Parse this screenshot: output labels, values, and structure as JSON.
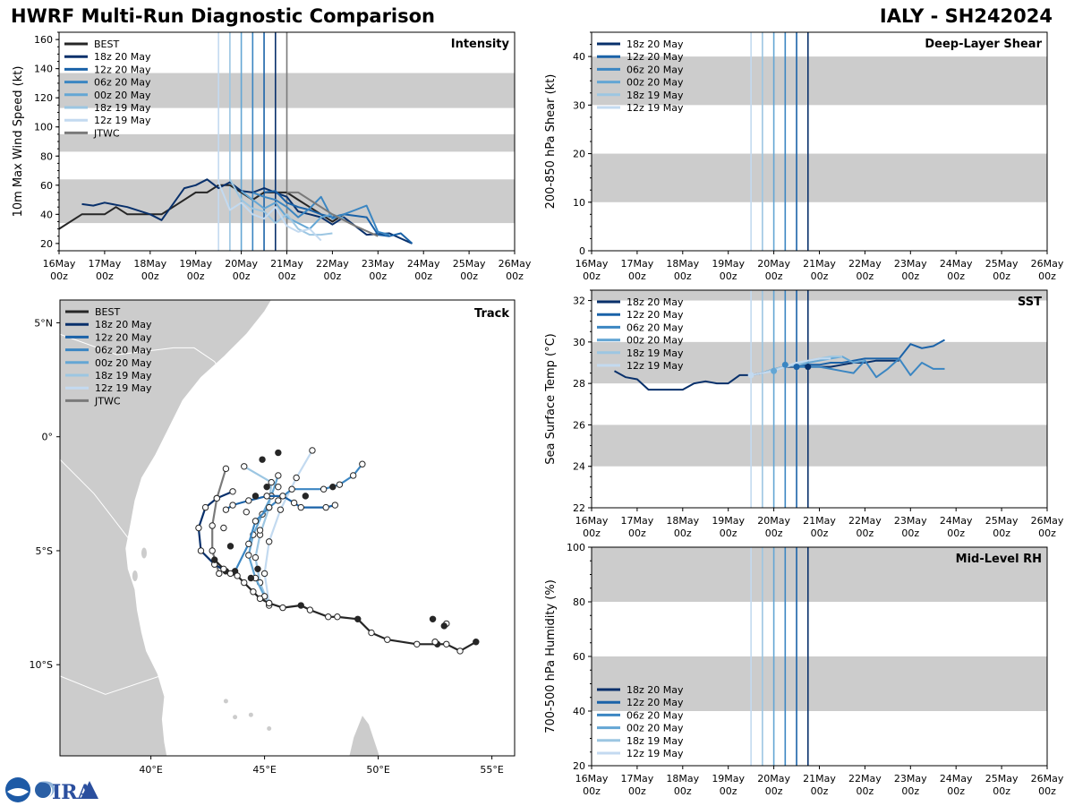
{
  "header": {
    "title": "HWRF Multi-Run Diagnostic Comparison",
    "storm_id": "IALY - SH242024"
  },
  "time_axis": {
    "tick_days": [
      "16May",
      "17May",
      "18May",
      "19May",
      "20May",
      "21May",
      "22May",
      "23May",
      "24May",
      "25May",
      "26May"
    ],
    "tick_hour": "00z",
    "range_hours": [
      0,
      240
    ]
  },
  "colors": {
    "best": "#262626",
    "r18z20": "#08306b",
    "r12z20": "#1a62a8",
    "r06z20": "#3b86c2",
    "r00z20": "#64a6d4",
    "r18z19": "#9cc6e2",
    "r12z19": "#c3daf0",
    "jtwc": "#7a7a7a",
    "shade": "#cccccc"
  },
  "run_init_hours": {
    "r12z19": 84,
    "r18z19": 90,
    "r00z20": 96,
    "r06z20": 102,
    "r12z20": 108,
    "r18z20": 114,
    "jtwc": 120
  },
  "chart_data": [
    {
      "id": "intensity",
      "type": "line",
      "title": "Intensity",
      "ylabel": "10m Max Wind Speed (kt)",
      "ylim": [
        15,
        165
      ],
      "yticks": [
        20,
        40,
        60,
        80,
        100,
        120,
        140,
        160
      ],
      "shade_bands": [
        [
          34,
          64
        ],
        [
          83,
          95
        ],
        [
          113,
          137
        ]
      ],
      "legend": [
        "BEST",
        "18z 20 May",
        "12z 20 May",
        "06z 20 May",
        "00z 20 May",
        "18z 19 May",
        "12z 19 May",
        "JTWC"
      ],
      "series": [
        {
          "name": "BEST",
          "color_key": "best",
          "x": [
            0,
            12,
            24,
            30,
            36,
            48,
            54,
            60,
            72,
            78,
            84,
            90,
            96,
            102,
            108,
            114,
            120,
            126,
            132,
            138,
            144,
            150
          ],
          "y": [
            30,
            40,
            40,
            45,
            40,
            40,
            40,
            45,
            55,
            55,
            60,
            60,
            55,
            50,
            55,
            55,
            55,
            50,
            45,
            40,
            35,
            40
          ]
        },
        {
          "name": "18z 20 May",
          "color_key": "r18z20",
          "x": [
            12,
            18,
            24,
            36,
            48,
            54,
            66,
            72,
            78,
            84,
            90,
            96,
            102,
            108,
            114,
            120,
            126,
            132,
            138,
            144,
            150,
            162,
            174,
            186
          ],
          "y": [
            47,
            46,
            48,
            45,
            40,
            36,
            58,
            60,
            64,
            58,
            62,
            56,
            55,
            58,
            55,
            52,
            42,
            40,
            38,
            33,
            38,
            26,
            27,
            20
          ]
        },
        {
          "name": "12z 20 May",
          "color_key": "r12z20",
          "x": [
            108,
            114,
            120,
            126,
            132,
            138,
            144,
            150,
            162,
            168,
            174,
            180,
            186
          ],
          "y": [
            55,
            56,
            48,
            45,
            43,
            40,
            38,
            40,
            38,
            26,
            25,
            27,
            20
          ]
        },
        {
          "name": "06z 20 May",
          "color_key": "r06z20",
          "x": [
            102,
            108,
            114,
            120,
            126,
            132,
            138,
            144,
            150,
            156,
            162,
            168,
            174
          ],
          "y": [
            55,
            52,
            50,
            45,
            38,
            44,
            52,
            37,
            40,
            43,
            46,
            28,
            26
          ]
        },
        {
          "name": "00z 20 May",
          "color_key": "r00z20",
          "x": [
            96,
            102,
            108,
            114,
            120,
            126,
            132,
            138,
            144,
            150
          ],
          "y": [
            56,
            50,
            44,
            48,
            38,
            34,
            30,
            38,
            40,
            37
          ]
        },
        {
          "name": "18z 19 May",
          "color_key": "r18z19",
          "x": [
            90,
            96,
            102,
            108,
            114,
            120,
            126,
            132,
            138,
            144
          ],
          "y": [
            64,
            50,
            44,
            42,
            34,
            40,
            30,
            26,
            26,
            27
          ]
        },
        {
          "name": "12z 19 May",
          "color_key": "r12z19",
          "x": [
            84,
            90,
            96,
            102,
            108,
            114,
            120,
            126,
            132,
            138
          ],
          "y": [
            62,
            43,
            48,
            40,
            37,
            45,
            32,
            28,
            30,
            22
          ]
        },
        {
          "name": "JTWC",
          "color_key": "jtwc",
          "x": [
            120,
            126,
            132,
            144,
            156,
            168
          ],
          "y": [
            55,
            55,
            50,
            40,
            32,
            25
          ]
        }
      ]
    },
    {
      "id": "shear",
      "type": "line",
      "title": "Deep-Layer Shear",
      "ylabel": "200-850 hPa Shear (kt)",
      "ylim": [
        0,
        45
      ],
      "yticks": [
        0,
        10,
        20,
        30,
        40
      ],
      "shade_bands": [
        [
          10,
          20
        ],
        [
          30,
          40
        ]
      ],
      "legend": [
        "18z 20 May",
        "12z 20 May",
        "06z 20 May",
        "00z 20 May",
        "18z 19 May",
        "12z 19 May"
      ],
      "series": []
    },
    {
      "id": "sst",
      "type": "line",
      "title": "SST",
      "ylabel": "Sea Surface Temp (°C)",
      "ylim": [
        22,
        32.5
      ],
      "yticks": [
        22,
        24,
        26,
        28,
        30,
        32
      ],
      "shade_bands": [
        [
          24,
          26
        ],
        [
          28,
          30
        ],
        [
          32,
          34
        ]
      ],
      "legend": [
        "18z 20 May",
        "12z 20 May",
        "06z 20 May",
        "00z 20 May",
        "18z 19 May",
        "12z 19 May"
      ],
      "series": [
        {
          "name": "18z 20 May",
          "color_key": "r18z20",
          "x": [
            12,
            18,
            24,
            30,
            36,
            42,
            48,
            54,
            60,
            66,
            72,
            78,
            84,
            90,
            96,
            102,
            108,
            114,
            120,
            126,
            132,
            138,
            144,
            150,
            156,
            162
          ],
          "y": [
            28.6,
            28.3,
            28.2,
            27.7,
            27.7,
            27.7,
            27.7,
            28.0,
            28.1,
            28.0,
            28.0,
            28.4,
            28.4,
            28.5,
            28.7,
            28.8,
            28.8,
            28.8,
            28.8,
            28.8,
            28.9,
            29.0,
            29.0,
            29.1,
            29.1,
            29.1
          ]
        },
        {
          "name": "12z 20 May",
          "color_key": "r12z20",
          "x": [
            108,
            114,
            120,
            126,
            132,
            138,
            144,
            150,
            156,
            162,
            168,
            174,
            180,
            186
          ],
          "y": [
            28.8,
            28.9,
            28.9,
            29.0,
            29.0,
            29.1,
            29.2,
            29.2,
            29.2,
            29.2,
            29.9,
            29.7,
            29.8,
            30.1
          ]
        },
        {
          "name": "06z 20 May",
          "color_key": "r06z20",
          "x": [
            102,
            108,
            114,
            120,
            126,
            132,
            138,
            144,
            150,
            156,
            162,
            168,
            174,
            180,
            186
          ],
          "y": [
            28.9,
            28.8,
            28.8,
            28.8,
            28.7,
            28.6,
            28.5,
            29.1,
            28.3,
            28.7,
            29.2,
            28.4,
            29.0,
            28.7,
            28.7
          ]
        },
        {
          "name": "00z 20 May",
          "color_key": "r00z20",
          "x": [
            96,
            102,
            108,
            114,
            120,
            126,
            132,
            138,
            144
          ],
          "y": [
            28.6,
            28.8,
            28.9,
            29.0,
            29.1,
            29.2,
            29.3,
            29.0,
            29.1
          ]
        },
        {
          "name": "18z 19 May",
          "color_key": "r18z19",
          "x": [
            90,
            96,
            102,
            108,
            114,
            120,
            126,
            132
          ],
          "y": [
            28.5,
            28.7,
            28.8,
            28.9,
            29.1,
            29.2,
            29.3,
            29.3
          ]
        },
        {
          "name": "12z 19 May",
          "color_key": "r12z19",
          "x": [
            84,
            90,
            96,
            102,
            108,
            114,
            120,
            126
          ],
          "y": [
            28.4,
            28.5,
            28.6,
            28.8,
            29.0,
            29.1,
            29.2,
            29.2
          ]
        }
      ],
      "markers": [
        {
          "color_key": "r12z19",
          "x": 84,
          "y": 28.4
        },
        {
          "color_key": "r00z20",
          "x": 96,
          "y": 28.6
        },
        {
          "color_key": "r06z20",
          "x": 102,
          "y": 28.9
        },
        {
          "color_key": "r12z20",
          "x": 108,
          "y": 28.8
        },
        {
          "color_key": "r18z20",
          "x": 114,
          "y": 28.8
        }
      ]
    },
    {
      "id": "rh",
      "type": "line",
      "title": "Mid-Level RH",
      "ylabel": "700-500 hPa Humidity (%)",
      "ylim": [
        20,
        100
      ],
      "yticks": [
        20,
        40,
        60,
        80,
        100
      ],
      "shade_bands": [
        [
          40,
          60
        ],
        [
          80,
          100
        ]
      ],
      "legend": [
        "18z 20 May",
        "12z 20 May",
        "06z 20 May",
        "00z 20 May",
        "18z 19 May",
        "12z 19 May"
      ],
      "series": []
    },
    {
      "id": "track",
      "type": "scatter",
      "title": "Track",
      "xlim": [
        36,
        56
      ],
      "ylim": [
        -14,
        6
      ],
      "xtick_values": [
        40,
        45,
        50,
        55
      ],
      "xtick_labels": [
        "40°E",
        "45°E",
        "50°E",
        "55°E"
      ],
      "ytick_values": [
        5,
        0,
        -5,
        -10
      ],
      "ytick_labels": [
        "5°N",
        "0°",
        "5°S",
        "10°S"
      ],
      "legend": [
        "BEST",
        "18z 20 May",
        "12z 20 May",
        "06z 20 May",
        "00z 20 May",
        "18z 19 May",
        "12z 19 May",
        "JTWC"
      ],
      "series": [
        {
          "name": "BEST",
          "color_key": "best",
          "lon": [
            54.3,
            53.6,
            53.0,
            52.6,
            51.7,
            50.4,
            49.7,
            49.1,
            48.2,
            47.8,
            47.0,
            46.6,
            45.8,
            45.2,
            44.8,
            44.5,
            44.1,
            43.8,
            43.5,
            43.2,
            42.8
          ],
          "lat": [
            -9.0,
            -9.4,
            -9.1,
            -9.1,
            -9.1,
            -8.9,
            -8.6,
            -8.0,
            -7.9,
            -7.9,
            -7.6,
            -7.4,
            -7.5,
            -7.3,
            -7.1,
            -6.8,
            -6.4,
            -6.1,
            -6.0,
            -5.8,
            -5.4
          ],
          "filled": [
            true,
            false,
            false,
            true,
            false,
            false,
            false,
            true,
            false,
            false,
            false,
            true,
            false,
            false,
            false,
            false,
            false,
            false,
            false,
            false,
            true
          ]
        },
        {
          "name": "18z 20 May",
          "color_key": "r18z20",
          "lon": [
            43.6,
            42.9,
            42.4,
            42.1,
            42.2,
            42.8,
            43.3
          ],
          "lat": [
            -2.4,
            -2.7,
            -3.1,
            -4.0,
            -5.0,
            -5.6,
            -5.9
          ],
          "filled": [
            false,
            false,
            false,
            false,
            false,
            false,
            true
          ]
        },
        {
          "name": "12z 20 May",
          "color_key": "r12z20",
          "lon": [
            43.3,
            43.6,
            44.3,
            45.1,
            45.8,
            46.3,
            46.6,
            47.7,
            48.1
          ],
          "lat": [
            -3.2,
            -3.0,
            -2.8,
            -2.6,
            -2.6,
            -2.9,
            -3.1,
            -3.1,
            -3.0
          ],
          "filled": [
            false,
            false,
            false,
            false,
            false,
            false,
            false,
            false,
            false
          ]
        },
        {
          "name": "06z 20 May",
          "color_key": "r06z20",
          "lon": [
            43.7,
            44.3,
            44.6,
            45.2,
            46.2,
            47.6,
            48.3,
            48.9,
            49.3
          ],
          "lat": [
            -5.9,
            -4.7,
            -3.7,
            -3.1,
            -2.3,
            -2.3,
            -2.1,
            -1.7,
            -1.2
          ],
          "filled": [
            true,
            false,
            false,
            false,
            false,
            false,
            false,
            false,
            false
          ]
        },
        {
          "name": "00z 20 May",
          "color_key": "r00z20",
          "lon": [
            45.0,
            44.6,
            44.3,
            44.5,
            44.9,
            45.3,
            45.6
          ],
          "lat": [
            -7.0,
            -6.2,
            -5.2,
            -4.3,
            -3.4,
            -2.6,
            -1.7
          ],
          "filled": [
            false,
            false,
            false,
            false,
            false,
            false,
            false
          ]
        },
        {
          "name": "18z 19 May",
          "color_key": "r18z19",
          "lon": [
            45.2,
            44.8,
            44.6,
            44.8,
            45.2,
            45.3,
            44.1
          ],
          "lat": [
            -7.4,
            -6.4,
            -5.3,
            -4.3,
            -3.1,
            -2.0,
            -1.3
          ],
          "filled": [
            false,
            false,
            false,
            false,
            false,
            false,
            false
          ]
        },
        {
          "name": "12z 19 May",
          "color_key": "r12z19",
          "lon": [
            45.2,
            45.0,
            45.2,
            45.7,
            46.4,
            47.1
          ],
          "lat": [
            -7.3,
            -6.0,
            -4.6,
            -3.2,
            -1.8,
            -0.6
          ],
          "filled": [
            false,
            false,
            false,
            false,
            false,
            false
          ]
        },
        {
          "name": "JTWC",
          "color_key": "jtwc",
          "lon": [
            43.0,
            42.7,
            42.7,
            42.9,
            43.3
          ],
          "lat": [
            -6.0,
            -5.0,
            -3.9,
            -2.7,
            -1.4
          ],
          "filled": [
            false,
            false,
            false,
            true,
            false
          ]
        }
      ],
      "extra_markers": [
        {
          "lon": 45.6,
          "lat": -0.7,
          "filled": true
        },
        {
          "lon": 44.9,
          "lat": -1.0,
          "filled": true
        },
        {
          "lon": 46.8,
          "lat": -2.6,
          "filled": true
        },
        {
          "lon": 48.0,
          "lat": -2.2,
          "filled": true
        },
        {
          "lon": 45.1,
          "lat": -2.2,
          "filled": true
        },
        {
          "lon": 44.6,
          "lat": -2.6,
          "filled": true
        },
        {
          "lon": 43.5,
          "lat": -4.8,
          "filled": true
        },
        {
          "lon": 44.7,
          "lat": -5.8,
          "filled": true
        },
        {
          "lon": 44.4,
          "lat": -6.2,
          "filled": true
        },
        {
          "lon": 43.2,
          "lat": -4.0,
          "filled": false
        },
        {
          "lon": 44.8,
          "lat": -4.1,
          "filled": false
        },
        {
          "lon": 44.2,
          "lat": -3.3,
          "filled": false
        },
        {
          "lon": 45.6,
          "lat": -2.2,
          "filled": false
        },
        {
          "lon": 45.6,
          "lat": -2.8,
          "filled": false
        },
        {
          "lon": 52.4,
          "lat": -8.0,
          "filled": true
        },
        {
          "lon": 53.0,
          "lat": -8.2,
          "filled": false
        },
        {
          "lon": 52.9,
          "lat": -8.3,
          "filled": true
        },
        {
          "lon": 52.5,
          "lat": -9.0,
          "filled": false
        }
      ]
    }
  ]
}
